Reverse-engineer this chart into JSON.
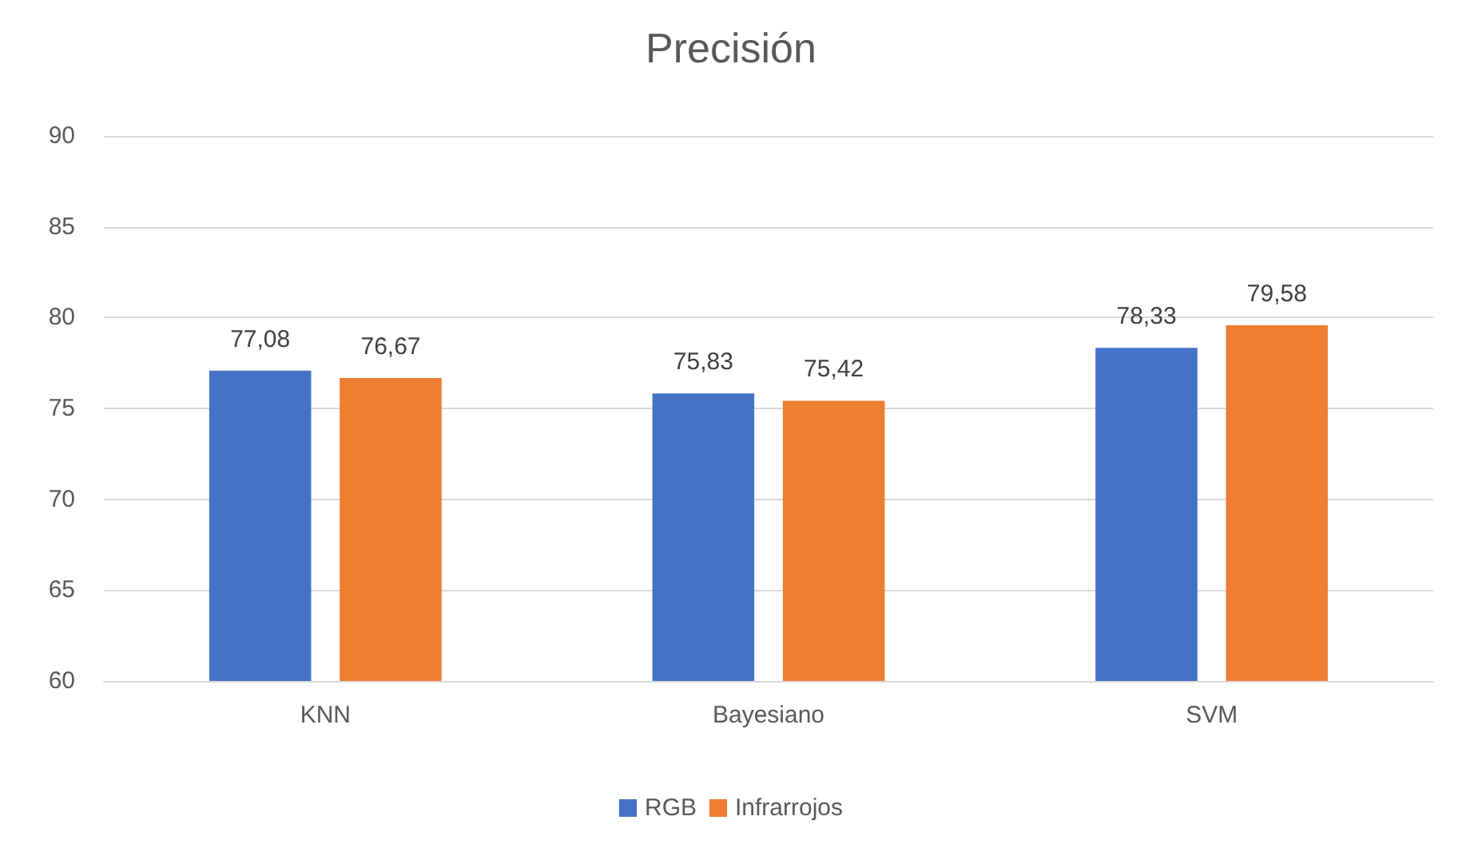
{
  "chart_data": {
    "type": "bar",
    "title": "Precisión",
    "categories": [
      "KNN",
      "Bayesiano",
      "SVM"
    ],
    "series": [
      {
        "name": "RGB",
        "color": "#4472c4",
        "values": [
          77.08,
          75.83,
          78.33
        ],
        "value_labels": [
          "77,08",
          "75,83",
          "78,33"
        ]
      },
      {
        "name": "Infrarrojos",
        "color": "#ed7d31",
        "values": [
          76.67,
          75.42,
          79.58
        ],
        "value_labels": [
          "76,67",
          "75,42",
          "79,58"
        ]
      }
    ],
    "ylim": [
      60,
      90
    ],
    "yticks": [
      60,
      65,
      70,
      75,
      80,
      85,
      90
    ],
    "grid": "y",
    "legend": "bottom"
  }
}
